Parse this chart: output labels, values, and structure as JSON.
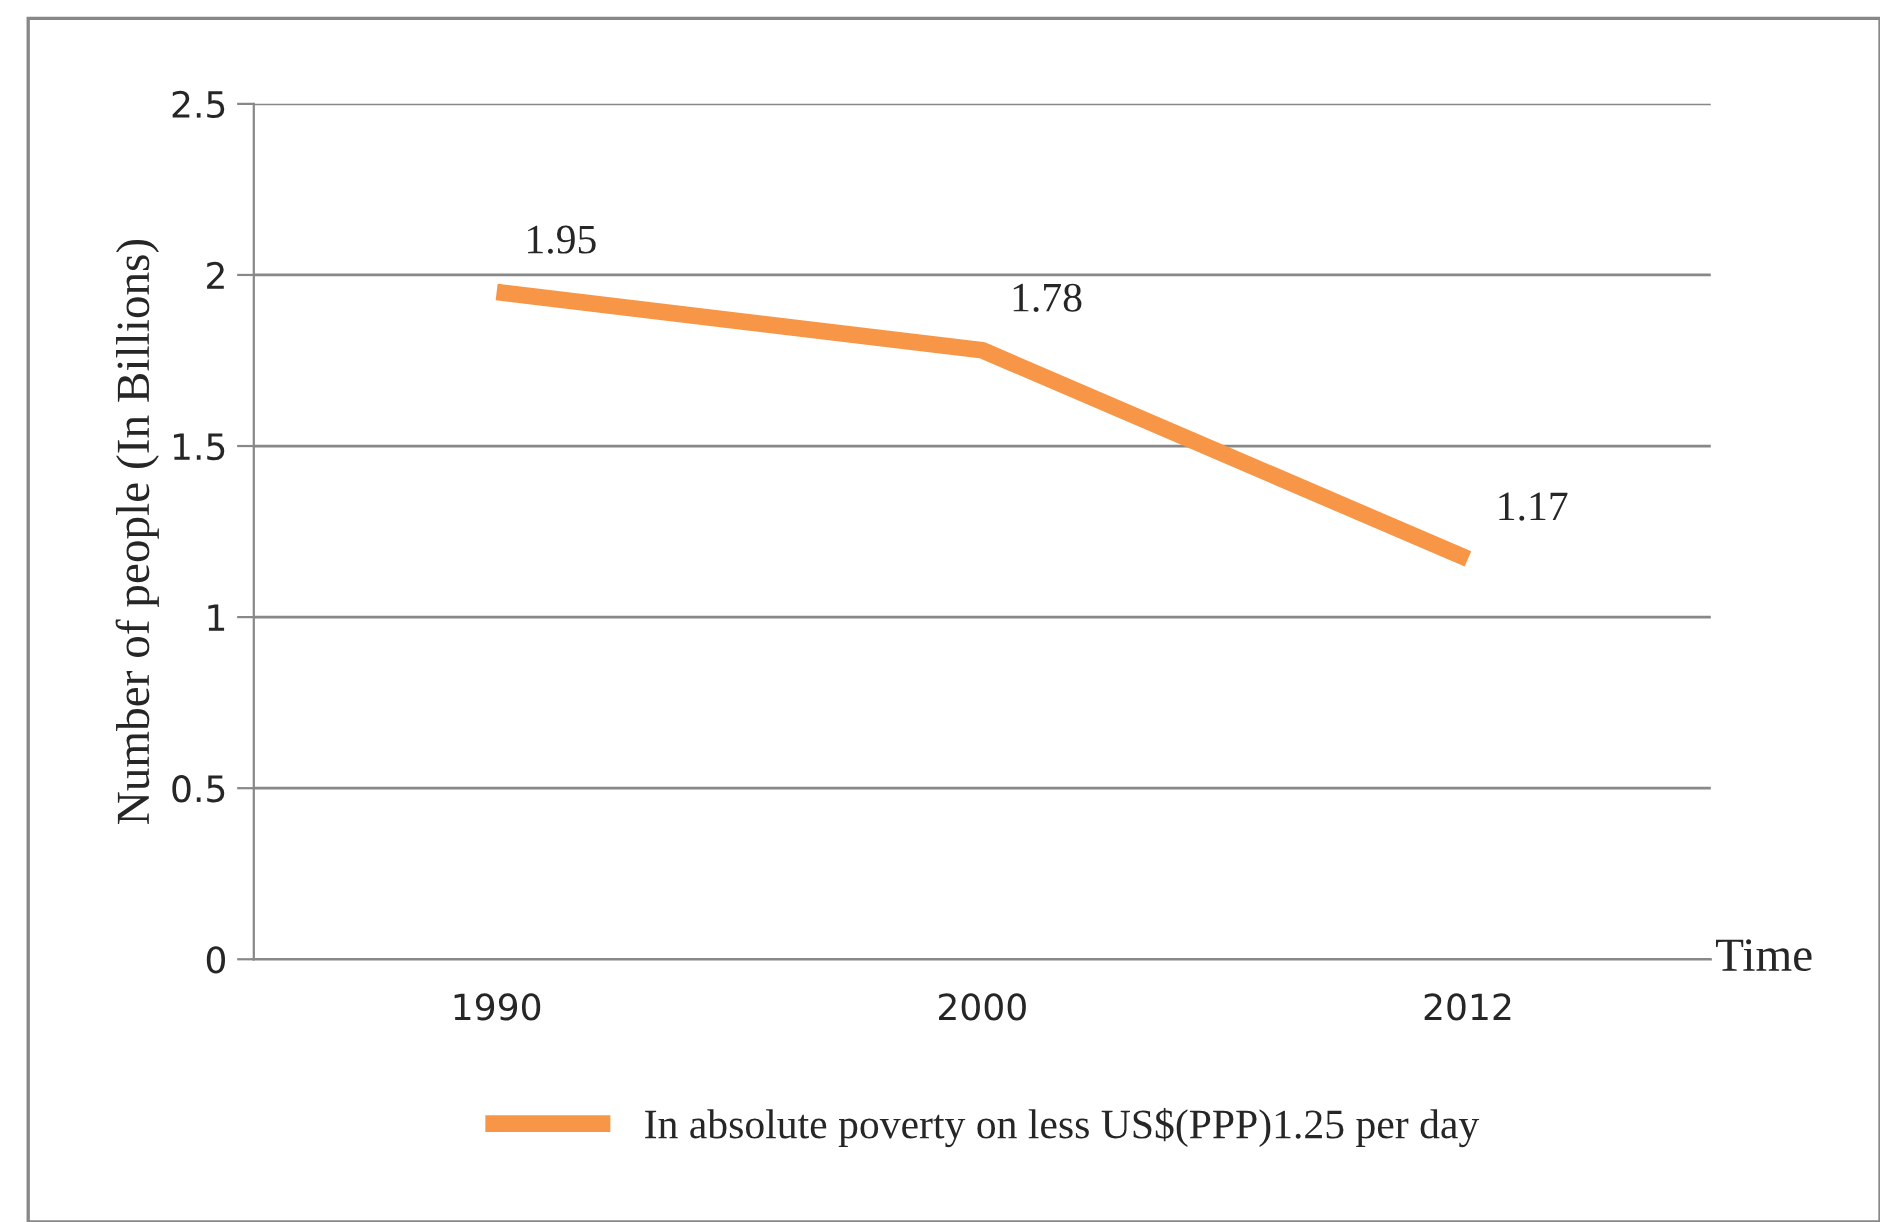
{
  "chart_data": {
    "type": "line",
    "xlabel": "Time",
    "ylabel": "Number of people (In Billions)",
    "categories": [
      "1990",
      "2000",
      "2012"
    ],
    "series": [
      {
        "name": "In absolute poverty on less US$(PPP)1.25 per day",
        "color": "#f79646",
        "values": [
          1.95,
          1.78,
          1.17
        ]
      }
    ],
    "ylim": [
      0,
      2.5
    ],
    "yticks": [
      0,
      0.5,
      1,
      1.5,
      2,
      2.5
    ],
    "grid": "y",
    "legend": "bottom",
    "data_labels": true,
    "marker": "none",
    "line_style": "solid"
  }
}
